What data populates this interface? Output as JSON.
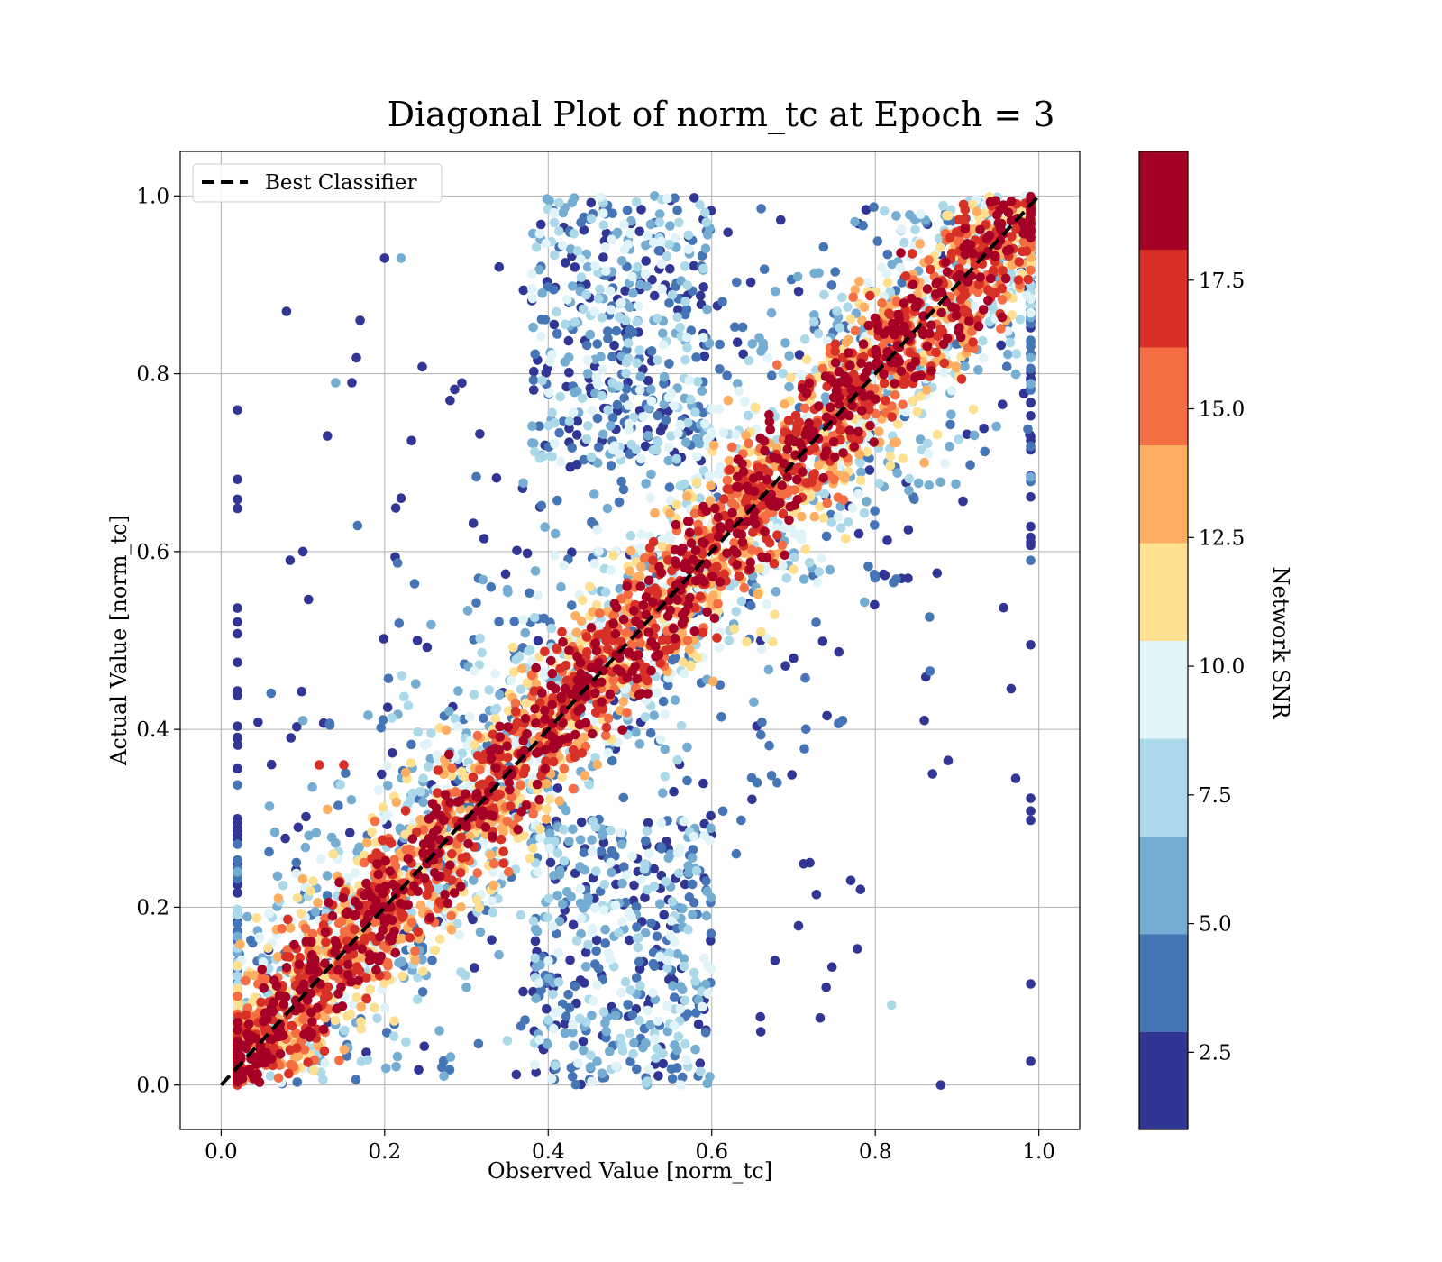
{
  "chart_data": {
    "type": "scatter",
    "title": "Diagonal Plot of norm_tc at Epoch = 3",
    "xlabel": "Observed Value [norm_tc]",
    "ylabel": "Actual Value [norm_tc]",
    "xlim": [
      -0.05,
      1.05
    ],
    "ylim": [
      -0.05,
      1.05
    ],
    "xticks": [
      "0.0",
      "0.2",
      "0.4",
      "0.6",
      "0.8",
      "1.0"
    ],
    "yticks": [
      "0.0",
      "0.2",
      "0.4",
      "0.6",
      "0.8",
      "1.0"
    ],
    "grid": true,
    "legend": {
      "position": "upper-left",
      "entries": [
        "Best Classifier"
      ]
    },
    "reference_line": {
      "name": "Best Classifier",
      "style": "dashed",
      "color": "#000000",
      "x": [
        0,
        1
      ],
      "y": [
        0,
        1
      ]
    },
    "colorbar": {
      "label": "Network SNR",
      "range": [
        1.0,
        20.0
      ],
      "tick_values": [
        2.5,
        5.0,
        7.5,
        10.0,
        12.5,
        15.0,
        17.5
      ],
      "tick_labels": [
        "2.5",
        "5.0",
        "7.5",
        "10.0",
        "12.5",
        "15.0",
        "17.5"
      ],
      "colors": [
        "#313695",
        "#4575b4",
        "#74add1",
        "#abd9e9",
        "#e0f3f8",
        "#fee090",
        "#fdae61",
        "#f46d43",
        "#d73027",
        "#a50026"
      ]
    },
    "points_description_from_image": "scatter of observed vs actual norm_tc colored by Network SNR; high SNR points lie along the diagonal, low SNR points spread widely",
    "series": [
      {
        "sample_points": [
          [
            0.08,
            0.87,
            1.5
          ],
          [
            0.1,
            0.6,
            1.5
          ],
          [
            0.13,
            0.73,
            1.5
          ],
          [
            0.17,
            0.86,
            1.5
          ],
          [
            0.16,
            0.79,
            1.5
          ],
          [
            0.14,
            0.79,
            6.5
          ],
          [
            0.1,
            0.41,
            6.5
          ],
          [
            0.2,
            0.93,
            1.5
          ],
          [
            0.22,
            0.66,
            1.5
          ],
          [
            0.24,
            0.5,
            1.5
          ],
          [
            0.22,
            0.93,
            6.5
          ],
          [
            0.28,
            0.77,
            1.5
          ],
          [
            0.34,
            0.92,
            1.5
          ],
          [
            0.44,
            0.97,
            3.5
          ],
          [
            0.5,
            0.94,
            6.5
          ],
          [
            0.56,
            0.97,
            8.5
          ],
          [
            0.49,
            0.82,
            6.5
          ],
          [
            0.43,
            0.85,
            3.5
          ],
          [
            0.55,
            0.73,
            8.5
          ],
          [
            0.39,
            0.65,
            1.5
          ],
          [
            0.33,
            0.56,
            3.5
          ],
          [
            0.84,
            0.57,
            1.5
          ],
          [
            0.78,
            0.62,
            1.5
          ],
          [
            0.86,
            0.41,
            1.5
          ],
          [
            0.87,
            0.35,
            1.5
          ],
          [
            0.76,
            0.41,
            3.5
          ],
          [
            0.77,
            0.23,
            1.5
          ],
          [
            0.82,
            0.09,
            8.5
          ],
          [
            0.88,
            0.0,
            1.5
          ],
          [
            0.74,
            0.11,
            1.5
          ],
          [
            0.68,
            0.34,
            3.5
          ],
          [
            0.72,
            0.25,
            1.5
          ],
          [
            0.66,
            0.06,
            1.5
          ],
          [
            0.63,
            0.26,
            3.5
          ],
          [
            0.58,
            0.04,
            6.5
          ],
          [
            0.52,
            0.24,
            3.5
          ],
          [
            0.44,
            0.17,
            6.5
          ],
          [
            0.35,
            0.05,
            8.5
          ],
          [
            0.3,
            0.11,
            6.5
          ],
          [
            0.27,
            0.02,
            3.5
          ],
          [
            0.61,
            0.45,
            3.5
          ],
          [
            0.66,
            0.5,
            1.5
          ],
          [
            0.7,
            0.48,
            1.5
          ],
          [
            0.57,
            0.38,
            6.5
          ],
          [
            0.07,
            0.21,
            14.0
          ],
          [
            0.12,
            0.36,
            16.5
          ],
          [
            0.15,
            0.36,
            16.5
          ],
          [
            0.05,
            0.13,
            18.5
          ],
          [
            0.13,
            0.31,
            13.5
          ],
          [
            0.92,
            0.76,
            12.0
          ],
          [
            0.96,
            0.86,
            13.5
          ],
          [
            0.98,
            0.97,
            18.5
          ],
          [
            0.7,
            0.58,
            12.0
          ],
          [
            0.62,
            0.77,
            14.0
          ],
          [
            0.68,
            0.81,
            16.0
          ],
          [
            0.86,
            0.7,
            14.0
          ]
        ]
      }
    ]
  }
}
